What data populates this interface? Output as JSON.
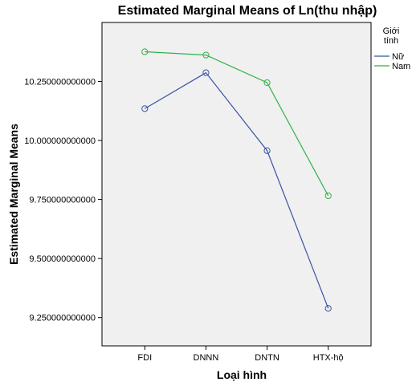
{
  "chart_data": {
    "type": "line",
    "title": "Estimated Marginal Means of Ln(thu nhập)",
    "xlabel": "Loại hình",
    "ylabel": "Estimated Marginal Means",
    "categories": [
      "FDI",
      "DNNN",
      "DNTN",
      "HTX-hộ"
    ],
    "ylim": [
      9.13,
      10.5
    ],
    "yticks": [
      9.25,
      9.5,
      9.75,
      10.0,
      10.25
    ],
    "ytick_labels": [
      "9.250000000000",
      "9.500000000000",
      "9.750000000000",
      "10.000000000000",
      "10.250000000000"
    ],
    "grid": false,
    "legend_position": "right",
    "legend_title": "Giới tính",
    "series": [
      {
        "name": "Nữ",
        "color": "#3a53a4",
        "values": [
          10.135,
          10.287,
          9.957,
          9.289
        ]
      },
      {
        "name": "Nam",
        "color": "#2fb24a",
        "values": [
          10.376,
          10.362,
          10.245,
          9.766
        ]
      }
    ]
  }
}
